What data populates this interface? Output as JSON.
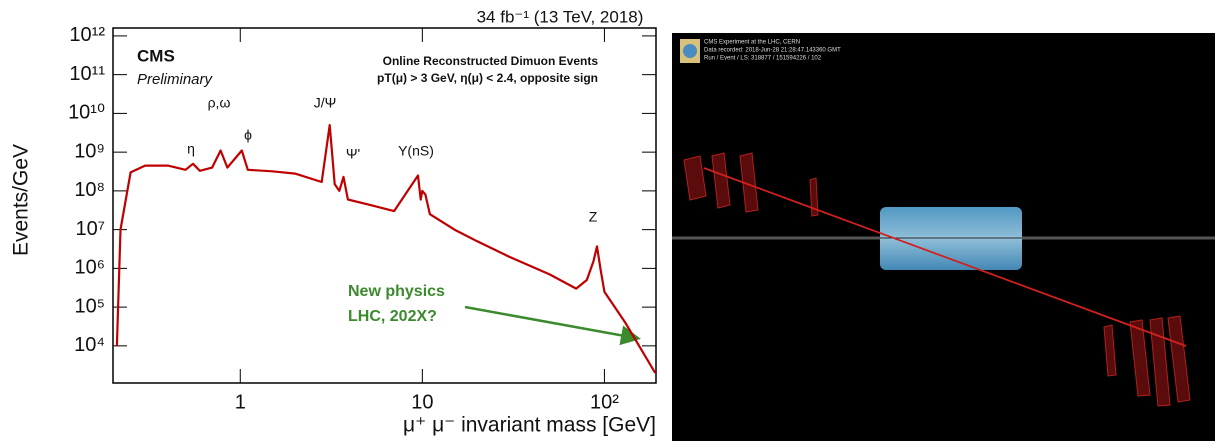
{
  "chart_data": {
    "type": "line",
    "title": "CMS",
    "subtitle": "Preliminary",
    "luminosity": "34 fb⁻¹ (13 TeV, 2018)",
    "info_title": "Online Reconstructed Dimuon Events",
    "info_cuts": "pT(μ) > 3 GeV, η(μ) < 2.4, opposite sign",
    "x_label": "μ⁺ μ⁻ invariant mass [GeV]",
    "y_label": "Events/GeV",
    "peak_labels": [
      "η",
      "ρ,ω",
      "ϕ",
      "J/Ψ",
      "Ψ'",
      "Υ(nS)",
      "Z"
    ],
    "arrow_text": [
      "New physics",
      "LHC, 202X?"
    ],
    "x": [
      0.21,
      0.22,
      0.25,
      0.3,
      0.4,
      0.5,
      0.55,
      0.6,
      0.7,
      0.78,
      0.85,
      1.02,
      1.1,
      1.5,
      2,
      2.8,
      3.1,
      3.3,
      3.5,
      3.69,
      3.9,
      5,
      7,
      9.46,
      9.8,
      10.0,
      10.4,
      11,
      15,
      20,
      30,
      50,
      70,
      80,
      87,
      91,
      95,
      100,
      130,
      190
    ],
    "values": [
      10000,
      10000000,
      300000000,
      450000000,
      450000000,
      350000000,
      500000000,
      330000000,
      400000000,
      1100000000,
      400000000,
      1100000000,
      350000000,
      320000000,
      280000000,
      170000000,
      5000000000,
      150000000,
      100000000,
      230000000,
      60000000,
      45000000,
      30000000,
      250000000,
      60000000,
      100000000,
      80000000,
      25000000,
      10000000,
      5000000,
      2000000,
      700000,
      300000,
      500000,
      1500000,
      3700000,
      1000000,
      250000,
      40000,
      2000
    ],
    "color": "#c00000",
    "xscale": "log",
    "yscale": "log",
    "xlim": [
      0.2,
      192
    ],
    "ylim": [
      1100,
      1600000000000
    ],
    "xticks": [
      1,
      10,
      {
        "value": 100,
        "label": "10²"
      }
    ],
    "yticks": [
      {
        "value": 10000,
        "label": "10⁴"
      },
      {
        "value": 100000,
        "label": "10⁵"
      },
      {
        "value": 1000000,
        "label": "10⁶"
      },
      {
        "value": 10000000,
        "label": "10⁷"
      },
      {
        "value": 100000000,
        "label": "10⁸"
      },
      {
        "value": 1000000000,
        "label": "10⁹"
      },
      {
        "value": 10000000000,
        "label": "10¹⁰"
      },
      {
        "value": 100000000000,
        "label": "10¹¹"
      },
      {
        "value": 1000000000000,
        "label": "10¹²"
      }
    ],
    "grid": false
  },
  "event_display": {
    "lines": [
      "CMS Experiment at the LHC, CERN",
      "Data recorded: 2018-Jun-28 21:28:47.143360 GMT",
      "Run / Event / LS: 318877 / 151594226 / 102"
    ]
  }
}
